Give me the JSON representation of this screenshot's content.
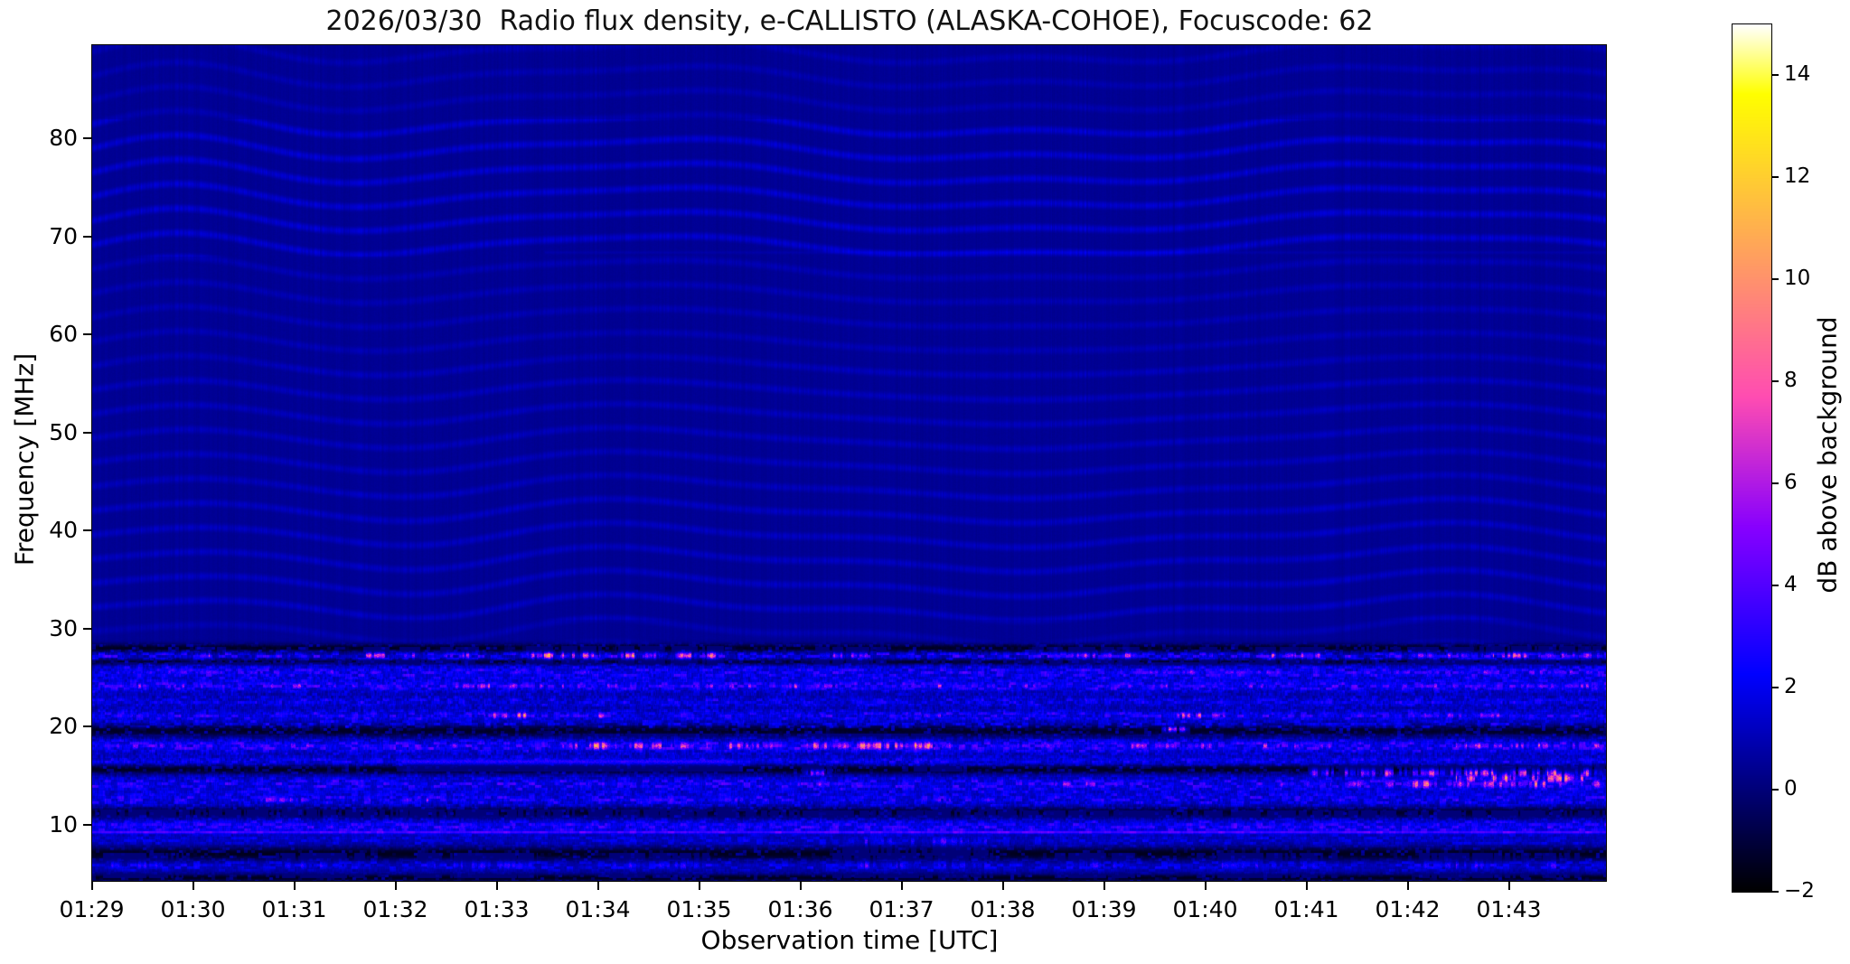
{
  "chart_data": {
    "type": "heatmap",
    "title": "2026/03/30  Radio flux density, e-CALLISTO (ALASKA-COHOE), Focuscode: 62",
    "xlabel": "Observation time [UTC]",
    "ylabel": "Frequency [MHz]",
    "colorbar_label": "dB above background",
    "colormap": "gnuplot2",
    "value_range_db": [
      -2,
      15
    ],
    "freq_range_mhz": [
      4.3,
      89.5
    ],
    "time_span_minutes": 14.96,
    "grid": false,
    "x_ticks": [
      {
        "label": "01:29",
        "minute": 0
      },
      {
        "label": "01:30",
        "minute": 1
      },
      {
        "label": "01:31",
        "minute": 2
      },
      {
        "label": "01:32",
        "minute": 3
      },
      {
        "label": "01:33",
        "minute": 4
      },
      {
        "label": "01:34",
        "minute": 5
      },
      {
        "label": "01:35",
        "minute": 6
      },
      {
        "label": "01:36",
        "minute": 7
      },
      {
        "label": "01:37",
        "minute": 8
      },
      {
        "label": "01:38",
        "minute": 9
      },
      {
        "label": "01:39",
        "minute": 10
      },
      {
        "label": "01:40",
        "minute": 11
      },
      {
        "label": "01:41",
        "minute": 12
      },
      {
        "label": "01:42",
        "minute": 13
      },
      {
        "label": "01:43",
        "minute": 14
      }
    ],
    "y_ticks": [
      {
        "label": "80",
        "mhz": 80
      },
      {
        "label": "70",
        "mhz": 70
      },
      {
        "label": "60",
        "mhz": 60
      },
      {
        "label": "50",
        "mhz": 50
      },
      {
        "label": "40",
        "mhz": 40
      },
      {
        "label": "30",
        "mhz": 30
      },
      {
        "label": "20",
        "mhz": 20
      },
      {
        "label": "10",
        "mhz": 10
      }
    ],
    "colorbar_ticks": [
      {
        "label": "14",
        "value": 14
      },
      {
        "label": "12",
        "value": 12
      },
      {
        "label": "10",
        "value": 10
      },
      {
        "label": "8",
        "value": 8
      },
      {
        "label": "6",
        "value": 6
      },
      {
        "label": "4",
        "value": 4
      },
      {
        "label": "2",
        "value": 2
      },
      {
        "label": "0",
        "value": 0
      },
      {
        "label": "−2",
        "value": -2
      }
    ],
    "colormap_stops": [
      {
        "value": -2,
        "color": "#000000"
      },
      {
        "value": 0,
        "color": "#000078"
      },
      {
        "value": 2,
        "color": "#0000f0"
      },
      {
        "value": 4,
        "color": "#5200ff"
      },
      {
        "value": 6,
        "color": "#b01ae5"
      },
      {
        "value": 8,
        "color": "#ff56a9"
      },
      {
        "value": 10,
        "color": "#ff926d"
      },
      {
        "value": 12,
        "color": "#ffce31"
      },
      {
        "value": 14,
        "color": "#ffff43"
      },
      {
        "value": 15,
        "color": "#ffffff"
      }
    ],
    "interference_ripples": {
      "freq_range_mhz": [
        28.5,
        89.5
      ],
      "description": "faint wavy zigzag ripple interference over dark navy background, strongest 68-82 MHz"
    },
    "bands_format": "[freq_MHz, half_width_MHz, boost_dB, speckle_dB]",
    "bands": [
      [
        27.3,
        0.45,
        0.4,
        2.2
      ],
      [
        25.6,
        0.8,
        0.8,
        1.6
      ],
      [
        24.2,
        0.55,
        0.9,
        1.8
      ],
      [
        22.6,
        0.5,
        0.5,
        1.2
      ],
      [
        21.2,
        0.5,
        0.8,
        1.6
      ],
      [
        20.3,
        0.45,
        0.6,
        1.5
      ],
      [
        18.1,
        0.7,
        1.0,
        2.0
      ],
      [
        16.5,
        0.45,
        0.8,
        1.2
      ],
      [
        14.2,
        0.8,
        0.8,
        1.8
      ],
      [
        12.6,
        0.8,
        0.7,
        1.5
      ],
      [
        9.9,
        0.8,
        1.0,
        1.5
      ],
      [
        9.3,
        0.14,
        2.4,
        0.6
      ],
      [
        8.4,
        0.6,
        0.5,
        1.0
      ],
      [
        5.9,
        0.6,
        0.6,
        1.4
      ]
    ],
    "dark_lanes_format": "[freq_MHz, half_width_MHz]",
    "dark_lanes": [
      [
        28.05,
        0.45
      ],
      [
        26.65,
        0.3
      ],
      [
        19.7,
        0.75
      ],
      [
        15.7,
        0.5
      ],
      [
        11.3,
        0.6
      ],
      [
        7.1,
        0.7
      ],
      [
        4.65,
        0.35
      ]
    ],
    "hotspots_format": "[freq_MHz, half_width_MHz, t_start_min_after_0129, t_end_min, peak_dB, smooth_flag]",
    "hotspots": [
      [
        27.3,
        0.28,
        0.97,
        1.29,
        8,
        0
      ],
      [
        27.3,
        0.28,
        1.91,
        2.13,
        7,
        0
      ],
      [
        27.3,
        0.28,
        2.63,
        2.94,
        9,
        0
      ],
      [
        27.3,
        0.28,
        3.03,
        3.34,
        8,
        0
      ],
      [
        27.3,
        0.28,
        3.43,
        3.79,
        10,
        0
      ],
      [
        27.3,
        0.3,
        4.28,
        5.04,
        14,
        0
      ],
      [
        27.3,
        0.3,
        5.13,
        5.66,
        13,
        0
      ],
      [
        27.3,
        0.3,
        5.71,
        6.24,
        12,
        0
      ],
      [
        27.3,
        0.28,
        7.13,
        7.85,
        9,
        0
      ],
      [
        27.3,
        0.28,
        9.28,
        10.35,
        9,
        0
      ],
      [
        27.3,
        0.28,
        10.93,
        11.15,
        8,
        0
      ],
      [
        27.3,
        0.28,
        11.46,
        12.18,
        10,
        0
      ],
      [
        27.3,
        0.3,
        12.58,
        12.89,
        13,
        0
      ],
      [
        27.3,
        0.28,
        12.98,
        13.65,
        9,
        0
      ],
      [
        27.3,
        0.3,
        13.7,
        14.96,
        11,
        0
      ],
      [
        25.6,
        0.3,
        0.2,
        3.4,
        5,
        0
      ],
      [
        25.6,
        0.3,
        4.0,
        5.1,
        5,
        0
      ],
      [
        25.6,
        0.3,
        10.1,
        11.7,
        6,
        0
      ],
      [
        25.6,
        0.3,
        12.6,
        14.9,
        6,
        0
      ],
      [
        24.2,
        0.3,
        0.1,
        3.2,
        8,
        0
      ],
      [
        24.2,
        0.3,
        3.5,
        5.3,
        8,
        0
      ],
      [
        24.2,
        0.3,
        5.9,
        7.5,
        8,
        0
      ],
      [
        24.2,
        0.3,
        7.8,
        9.4,
        8,
        0
      ],
      [
        24.2,
        0.3,
        10.0,
        11.8,
        6,
        0
      ],
      [
        24.2,
        0.3,
        12.7,
        14.96,
        7,
        0
      ],
      [
        21.2,
        0.3,
        0.25,
        0.75,
        6,
        0
      ],
      [
        21.2,
        0.32,
        3.85,
        4.35,
        12,
        0
      ],
      [
        21.2,
        0.3,
        4.6,
        5.1,
        9,
        0
      ],
      [
        21.2,
        0.3,
        7.9,
        8.5,
        7,
        0
      ],
      [
        21.2,
        0.32,
        10.65,
        11.25,
        10,
        0
      ],
      [
        21.2,
        0.3,
        13.1,
        14.2,
        7,
        0
      ],
      [
        19.8,
        0.25,
        10.55,
        10.85,
        9,
        0
      ],
      [
        18.1,
        0.35,
        0.05,
        0.95,
        6,
        0
      ],
      [
        18.1,
        0.35,
        1.4,
        2.3,
        6,
        0
      ],
      [
        18.1,
        0.3,
        3.3,
        3.65,
        7,
        0
      ],
      [
        18.1,
        0.4,
        4.45,
        6.9,
        11,
        0
      ],
      [
        18.1,
        0.4,
        7.0,
        8.6,
        12,
        0
      ],
      [
        18.1,
        0.35,
        9.0,
        9.6,
        7,
        0
      ],
      [
        18.1,
        0.35,
        10.2,
        11.1,
        8,
        0
      ],
      [
        18.1,
        0.35,
        11.5,
        12.3,
        8,
        0
      ],
      [
        18.1,
        0.35,
        13.4,
        14.96,
        8,
        0
      ],
      [
        16.5,
        0.3,
        3.0,
        6.4,
        4,
        1
      ],
      [
        16.5,
        0.3,
        8.0,
        8.6,
        5,
        0
      ],
      [
        16.5,
        0.3,
        12.3,
        12.8,
        5,
        0
      ],
      [
        15.3,
        0.3,
        7.0,
        7.35,
        7,
        0
      ],
      [
        15.3,
        0.4,
        12.0,
        14.96,
        10,
        0
      ],
      [
        14.2,
        0.35,
        4.8,
        5.3,
        8,
        0
      ],
      [
        14.2,
        0.35,
        6.9,
        7.4,
        8,
        0
      ],
      [
        14.2,
        0.35,
        9.4,
        10.2,
        8,
        0
      ],
      [
        14.2,
        0.4,
        11.7,
        12.6,
        9,
        0
      ],
      [
        14.2,
        0.45,
        12.4,
        14.96,
        12,
        0
      ],
      [
        14.8,
        0.5,
        13.4,
        14.96,
        13,
        0
      ],
      [
        12.6,
        0.3,
        1.6,
        2.2,
        7,
        0
      ],
      [
        12.6,
        0.3,
        3.0,
        3.4,
        7,
        0
      ],
      [
        12.6,
        0.35,
        5.5,
        6.5,
        5,
        0
      ],
      [
        12.6,
        0.35,
        8.2,
        9.2,
        5,
        0
      ],
      [
        9.9,
        0.55,
        0.0,
        5.6,
        4,
        0
      ],
      [
        9.9,
        0.5,
        5.6,
        14.96,
        3,
        0
      ],
      [
        8.4,
        0.45,
        7.4,
        8.9,
        4.5,
        0
      ],
      [
        5.9,
        0.4,
        0.1,
        0.9,
        4.5,
        0
      ],
      [
        5.9,
        0.4,
        1.8,
        2.7,
        4.5,
        0
      ],
      [
        5.9,
        0.4,
        3.2,
        4.4,
        4.5,
        0
      ],
      [
        5.9,
        0.4,
        5.1,
        6.1,
        5,
        0
      ],
      [
        5.9,
        0.4,
        7.3,
        8.9,
        5,
        0
      ],
      [
        5.9,
        0.4,
        9.5,
        10.3,
        4.5,
        0
      ],
      [
        5.9,
        0.4,
        10.9,
        12.3,
        4.5,
        0
      ],
      [
        5.9,
        0.4,
        13.1,
        14.7,
        5,
        0
      ]
    ]
  }
}
